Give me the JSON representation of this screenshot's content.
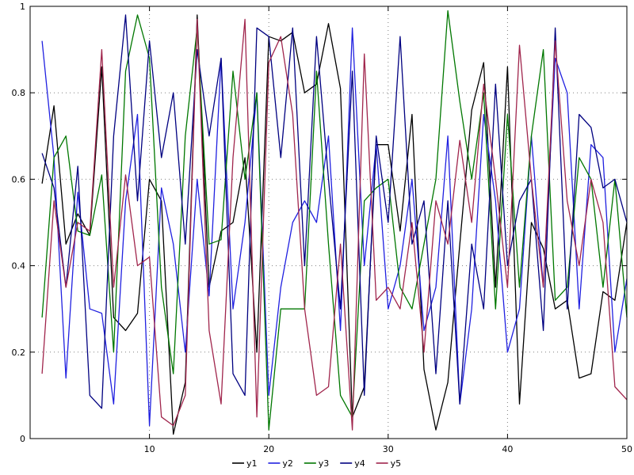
{
  "chart_data": {
    "type": "line",
    "title": "",
    "xlabel": "",
    "ylabel": "",
    "xlim": [
      0,
      50
    ],
    "ylim": [
      0,
      1
    ],
    "xticks": [
      10,
      20,
      30,
      40,
      50
    ],
    "yticks": [
      0,
      0.2,
      0.4,
      0.6,
      0.8,
      1
    ],
    "ytick_labels": [
      "0",
      "0.2",
      "0.4",
      "0.6",
      "0.8",
      "1"
    ],
    "grid": true,
    "grid_style": "dotted",
    "legend_position": "bottom-center",
    "background_color": "#ffffff",
    "frame_color": "#000000",
    "x_range": [
      1,
      50
    ],
    "series": [
      {
        "name": "y1",
        "color": "#000000",
        "values": [
          0.59,
          0.77,
          0.45,
          0.52,
          0.47,
          0.86,
          0.28,
          0.25,
          0.29,
          0.6,
          0.55,
          0.01,
          0.13,
          0.98,
          0.35,
          0.48,
          0.5,
          0.65,
          0.2,
          0.93,
          0.92,
          0.94,
          0.8,
          0.82,
          0.96,
          0.81,
          0.05,
          0.12,
          0.68,
          0.68,
          0.48,
          0.75,
          0.16,
          0.02,
          0.13,
          0.45,
          0.76,
          0.87,
          0.35,
          0.86,
          0.08,
          0.5,
          0.44,
          0.3,
          0.32,
          0.14,
          0.15,
          0.34,
          0.32,
          0.5
        ]
      },
      {
        "name": "y2",
        "color": "#2020e0",
        "values": [
          0.92,
          0.65,
          0.14,
          0.57,
          0.3,
          0.29,
          0.08,
          0.55,
          0.75,
          0.03,
          0.58,
          0.45,
          0.2,
          0.6,
          0.33,
          0.88,
          0.3,
          0.5,
          0.8,
          0.1,
          0.35,
          0.5,
          0.55,
          0.5,
          0.7,
          0.25,
          0.95,
          0.4,
          0.68,
          0.3,
          0.4,
          0.6,
          0.25,
          0.35,
          0.7,
          0.08,
          0.3,
          0.75,
          0.55,
          0.2,
          0.3,
          0.7,
          0.35,
          0.88,
          0.8,
          0.3,
          0.68,
          0.65,
          0.2,
          0.37
        ]
      },
      {
        "name": "y3",
        "color": "#007700",
        "values": [
          0.28,
          0.65,
          0.7,
          0.48,
          0.47,
          0.61,
          0.2,
          0.85,
          0.98,
          0.88,
          0.35,
          0.15,
          0.7,
          0.95,
          0.45,
          0.46,
          0.85,
          0.6,
          0.8,
          0.02,
          0.3,
          0.3,
          0.3,
          0.85,
          0.45,
          0.1,
          0.05,
          0.55,
          0.58,
          0.6,
          0.35,
          0.3,
          0.45,
          0.6,
          0.99,
          0.78,
          0.6,
          0.8,
          0.3,
          0.75,
          0.35,
          0.7,
          0.9,
          0.32,
          0.35,
          0.65,
          0.6,
          0.35,
          0.6,
          0.28
        ]
      },
      {
        "name": "y4",
        "color": "#000080",
        "values": [
          0.66,
          0.58,
          0.35,
          0.63,
          0.1,
          0.07,
          0.7,
          0.98,
          0.55,
          0.92,
          0.65,
          0.8,
          0.45,
          0.9,
          0.7,
          0.88,
          0.15,
          0.1,
          0.95,
          0.93,
          0.65,
          0.95,
          0.4,
          0.93,
          0.6,
          0.3,
          0.85,
          0.1,
          0.7,
          0.5,
          0.93,
          0.45,
          0.55,
          0.15,
          0.55,
          0.08,
          0.45,
          0.3,
          0.82,
          0.4,
          0.55,
          0.6,
          0.25,
          0.95,
          0.3,
          0.75,
          0.72,
          0.58,
          0.6,
          0.5
        ]
      },
      {
        "name": "y5",
        "color": "#a0254c",
        "values": [
          0.15,
          0.55,
          0.35,
          0.5,
          0.48,
          0.9,
          0.35,
          0.61,
          0.4,
          0.42,
          0.05,
          0.03,
          0.1,
          0.97,
          0.25,
          0.08,
          0.65,
          0.97,
          0.05,
          0.87,
          0.93,
          0.75,
          0.3,
          0.1,
          0.12,
          0.45,
          0.02,
          0.89,
          0.32,
          0.35,
          0.3,
          0.5,
          0.2,
          0.55,
          0.45,
          0.69,
          0.5,
          0.82,
          0.6,
          0.35,
          0.91,
          0.6,
          0.35,
          0.92,
          0.55,
          0.4,
          0.6,
          0.5,
          0.12,
          0.09
        ]
      }
    ]
  },
  "legend": {
    "items": [
      {
        "label": "y1",
        "color": "#000000"
      },
      {
        "label": "y2",
        "color": "#2020e0"
      },
      {
        "label": "y3",
        "color": "#007700"
      },
      {
        "label": "y4",
        "color": "#000080"
      },
      {
        "label": "y5",
        "color": "#a0254c"
      }
    ]
  }
}
